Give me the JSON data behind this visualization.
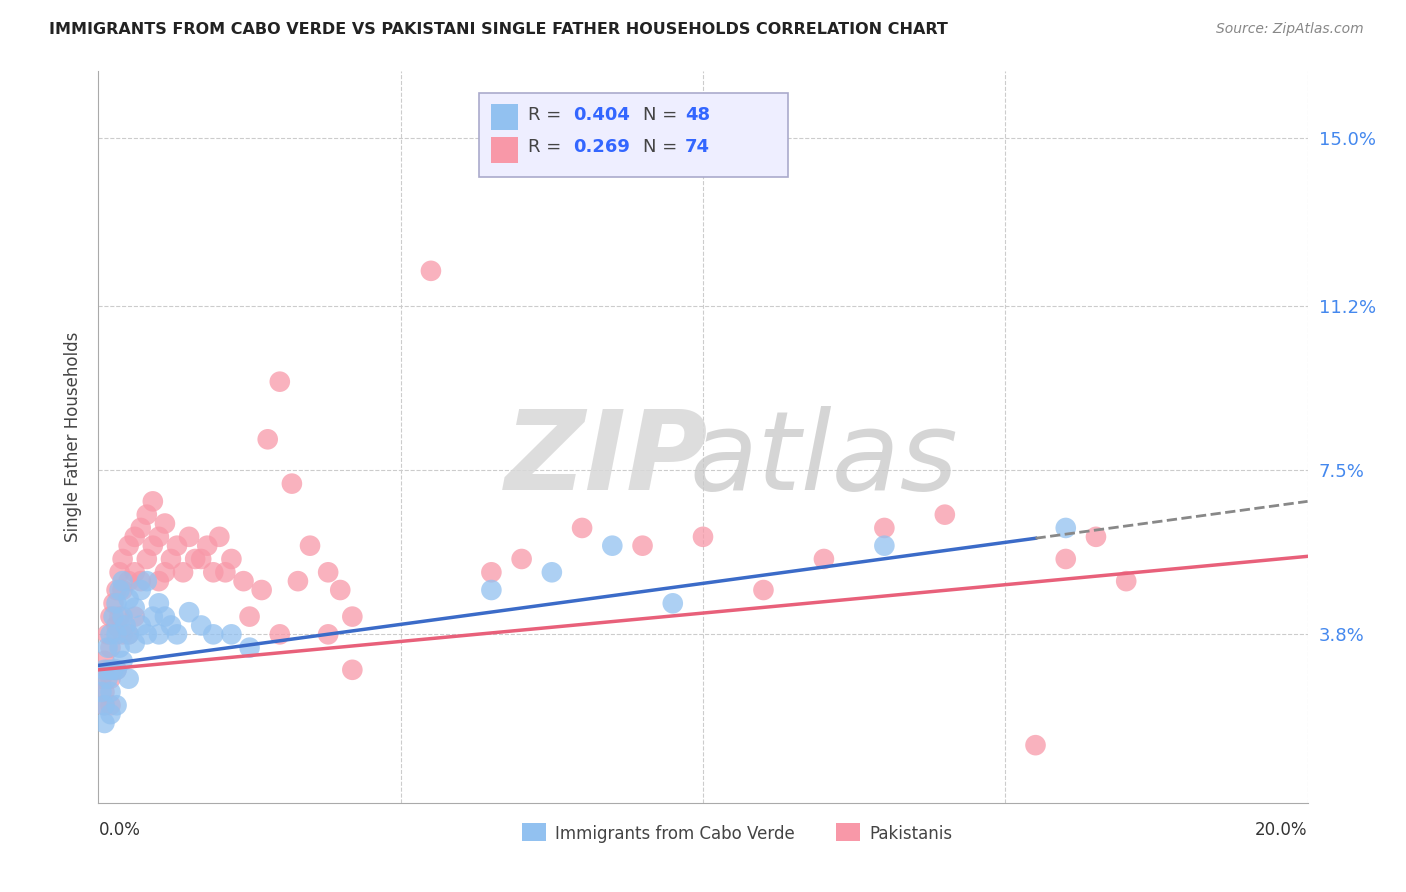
{
  "title": "IMMIGRANTS FROM CABO VERDE VS PAKISTANI SINGLE FATHER HOUSEHOLDS CORRELATION CHART",
  "source": "Source: ZipAtlas.com",
  "ylabel": "Single Father Households",
  "ytick_labels": [
    "15.0%",
    "11.2%",
    "7.5%",
    "3.8%"
  ],
  "ytick_values": [
    0.15,
    0.112,
    0.075,
    0.038
  ],
  "xlim": [
    0.0,
    0.2
  ],
  "ylim": [
    0.0,
    0.165
  ],
  "blue_color": "#92C1F0",
  "pink_color": "#F898A8",
  "line_blue": "#3B6BC8",
  "line_pink": "#E8607A",
  "legend_box_color": "#E8E8F8",
  "cabo_verde_x": [
    0.0005,
    0.001,
    0.001,
    0.001,
    0.0015,
    0.0015,
    0.002,
    0.002,
    0.002,
    0.002,
    0.0025,
    0.0025,
    0.003,
    0.003,
    0.003,
    0.003,
    0.0035,
    0.0035,
    0.004,
    0.004,
    0.004,
    0.0045,
    0.005,
    0.005,
    0.005,
    0.006,
    0.006,
    0.007,
    0.007,
    0.008,
    0.008,
    0.009,
    0.01,
    0.01,
    0.011,
    0.012,
    0.013,
    0.015,
    0.017,
    0.019,
    0.022,
    0.025,
    0.065,
    0.075,
    0.085,
    0.095,
    0.13,
    0.16
  ],
  "cabo_verde_y": [
    0.025,
    0.03,
    0.022,
    0.018,
    0.035,
    0.028,
    0.038,
    0.03,
    0.025,
    0.02,
    0.042,
    0.03,
    0.045,
    0.038,
    0.03,
    0.022,
    0.048,
    0.035,
    0.05,
    0.042,
    0.032,
    0.04,
    0.046,
    0.038,
    0.028,
    0.044,
    0.036,
    0.048,
    0.04,
    0.05,
    0.038,
    0.042,
    0.045,
    0.038,
    0.042,
    0.04,
    0.038,
    0.043,
    0.04,
    0.038,
    0.038,
    0.035,
    0.048,
    0.052,
    0.058,
    0.045,
    0.058,
    0.062
  ],
  "pakistani_x": [
    0.0005,
    0.001,
    0.001,
    0.001,
    0.0015,
    0.0015,
    0.002,
    0.002,
    0.002,
    0.002,
    0.0025,
    0.003,
    0.003,
    0.003,
    0.0035,
    0.0035,
    0.004,
    0.004,
    0.004,
    0.005,
    0.005,
    0.005,
    0.006,
    0.006,
    0.006,
    0.007,
    0.007,
    0.008,
    0.008,
    0.009,
    0.009,
    0.01,
    0.01,
    0.011,
    0.011,
    0.012,
    0.013,
    0.014,
    0.015,
    0.016,
    0.017,
    0.018,
    0.019,
    0.02,
    0.021,
    0.022,
    0.024,
    0.025,
    0.027,
    0.03,
    0.033,
    0.038,
    0.042,
    0.03,
    0.028,
    0.032,
    0.035,
    0.038,
    0.04,
    0.042,
    0.055,
    0.065,
    0.07,
    0.08,
    0.09,
    0.1,
    0.11,
    0.12,
    0.13,
    0.14,
    0.16,
    0.17,
    0.165,
    0.155
  ],
  "pakistani_y": [
    0.028,
    0.032,
    0.025,
    0.022,
    0.038,
    0.03,
    0.042,
    0.035,
    0.028,
    0.022,
    0.045,
    0.048,
    0.04,
    0.03,
    0.052,
    0.042,
    0.055,
    0.048,
    0.038,
    0.058,
    0.05,
    0.038,
    0.06,
    0.052,
    0.042,
    0.062,
    0.05,
    0.065,
    0.055,
    0.068,
    0.058,
    0.06,
    0.05,
    0.063,
    0.052,
    0.055,
    0.058,
    0.052,
    0.06,
    0.055,
    0.055,
    0.058,
    0.052,
    0.06,
    0.052,
    0.055,
    0.05,
    0.042,
    0.048,
    0.038,
    0.05,
    0.038,
    0.03,
    0.095,
    0.082,
    0.072,
    0.058,
    0.052,
    0.048,
    0.042,
    0.12,
    0.052,
    0.055,
    0.062,
    0.058,
    0.06,
    0.048,
    0.055,
    0.062,
    0.065,
    0.055,
    0.05,
    0.06,
    0.013
  ],
  "blue_line_solid_end": 0.155,
  "blue_line_dashed_start": 0.155,
  "blue_line_end": 0.2,
  "pink_line_start": 0.0,
  "pink_line_end": 0.2,
  "blue_regression_m": 0.185,
  "blue_regression_b": 0.031,
  "pink_regression_m": 0.128,
  "pink_regression_b": 0.03
}
